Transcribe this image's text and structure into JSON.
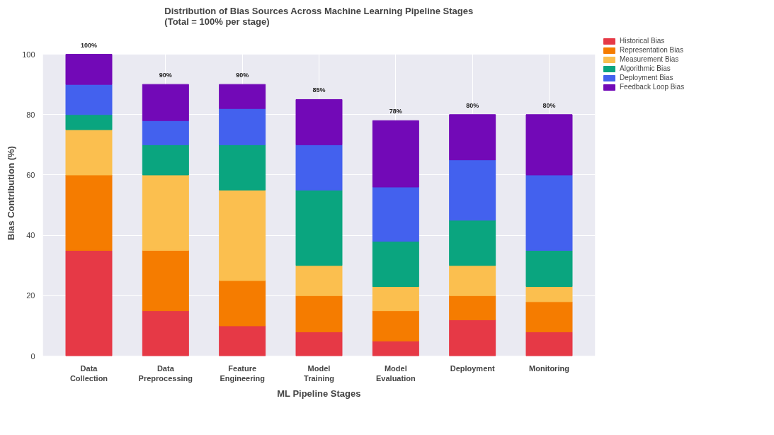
{
  "chart_data": {
    "type": "bar",
    "stacked": true,
    "title": "Distribution of Bias Sources Across Machine Learning Pipeline Stages\n(Total = 100% per stage)",
    "xlabel": "ML Pipeline Stages",
    "ylabel": "Bias Contribution (%)",
    "categories": [
      "Data\nCollection",
      "Data\nPreprocessing",
      "Feature\nEngineering",
      "Model\nTraining",
      "Model\nEvaluation",
      "Deployment",
      "Monitoring"
    ],
    "series": [
      {
        "name": "Historical Bias",
        "color": "#e63946",
        "values": [
          35,
          15,
          10,
          8,
          5,
          12,
          8
        ]
      },
      {
        "name": "Representation Bias",
        "color": "#f57c00",
        "values": [
          25,
          20,
          15,
          12,
          10,
          8,
          10
        ]
      },
      {
        "name": "Measurement Bias",
        "color": "#fbbf4f",
        "values": [
          15,
          25,
          30,
          10,
          8,
          10,
          5
        ]
      },
      {
        "name": "Algorithmic Bias",
        "color": "#0aa57f",
        "values": [
          5,
          10,
          15,
          25,
          15,
          15,
          12
        ]
      },
      {
        "name": "Deployment Bias",
        "color": "#4361ee",
        "values": [
          10,
          8,
          12,
          15,
          18,
          20,
          25
        ]
      },
      {
        "name": "Feedback Loop Bias",
        "color": "#7209b7",
        "values": [
          10,
          12,
          8,
          15,
          22,
          15,
          20
        ]
      }
    ],
    "totals": [
      "100%",
      "90%",
      "90%",
      "85%",
      "78%",
      "80%",
      "80%"
    ],
    "ylim": [
      0,
      100
    ],
    "yticks": [
      0,
      20,
      40,
      60,
      80,
      100
    ],
    "grid": true,
    "legend": "top right"
  }
}
